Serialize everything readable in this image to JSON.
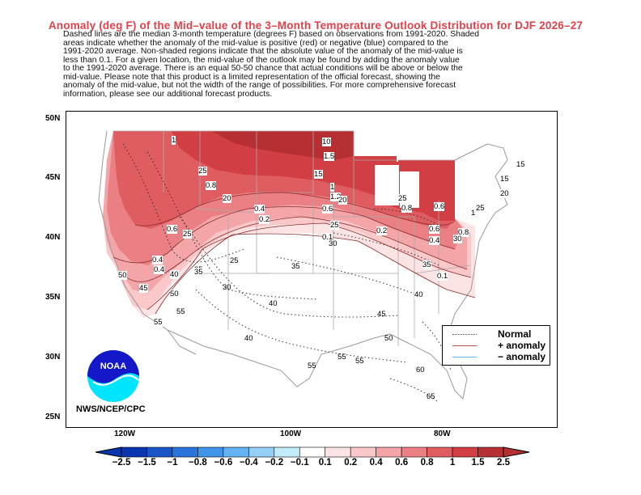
{
  "title": "Anomaly (deg F) of the Mid–value of the 3–Month Temperature Outlook Distribution for DJF 2026–27",
  "description": "Dashed lines are the median 3-month temperature (degrees F) based on observations from 1991-2020.  Shaded\nareas indicate whether the anomaly of the mid-value is positive (red) or negative (blue) compared to the\n1991-2020 average.   Non-shaded regions indicate that the absolute value of the anomaly of the mid-value is\nless than 0.1.   For a given location, the mid-value of the outlook may be found by adding the anomaly value\nto the 1991-2020 average. There is an equal 50-50 chance that actual conditions will be above or below the\nmid-value. Please note that this product is a limited representation of the official forecast, showing the\nanomaly of the mid-value, but not the width of the range of possibilities. For more comprehensive forecast\ninformation, please see our additional forecast products.",
  "lat_labels": [
    "50N",
    "45N",
    "40N",
    "35N",
    "30N",
    "25N"
  ],
  "lon_labels": [
    "120W",
    "100W",
    "80W"
  ],
  "map": {
    "anomaly_contour_labels": [
      "1",
      "10",
      "1.5",
      "25",
      "15",
      "0.8",
      "20",
      "1",
      "1.2",
      "20",
      "0.6",
      "0.4",
      "0.2",
      "0.1",
      "25",
      "0.2",
      "25",
      "0.8",
      "0.6",
      "0.4",
      "0.6",
      "0.4",
      "0.8",
      "30",
      "25",
      "1",
      "15",
      "20",
      "15",
      "0.6",
      "25",
      "0.4",
      "35",
      "50",
      "45",
      "40",
      "35",
      "50",
      "55",
      "55",
      "0.1",
      "35",
      "40"
    ],
    "normal_contour_labels": [
      "25",
      "30",
      "35",
      "40",
      "45",
      "50",
      "55",
      "55",
      "55",
      "60",
      "65",
      "40",
      "30"
    ]
  },
  "legend": {
    "items": [
      {
        "label": "Normal",
        "color": "#555555"
      },
      {
        "label": "+ anomaly",
        "color": "#b5504e"
      },
      {
        "label": "− anomaly",
        "color": "#5fb8e8"
      }
    ]
  },
  "agency": "NWS/NCEP/CPC",
  "logo_text": "NOAA",
  "colorbar": {
    "labels": [
      "−2.5",
      "−1.5",
      "−1",
      "−0.8",
      "−0.6",
      "−0.4",
      "−0.2",
      "−0.1",
      "0.1",
      "0.2",
      "0.4",
      "0.6",
      "0.8",
      "1",
      "1.5",
      "2.5"
    ],
    "colors": [
      "#0a35b0",
      "#1a55c8",
      "#2a74db",
      "#3f93e8",
      "#63b2f2",
      "#93cff6",
      "#c3ecfb",
      "#ffffff",
      "#fde4e4",
      "#fbc8ca",
      "#f3a5a8",
      "#ea8083",
      "#df5d61",
      "#d13e43",
      "#b52f33"
    ]
  }
}
